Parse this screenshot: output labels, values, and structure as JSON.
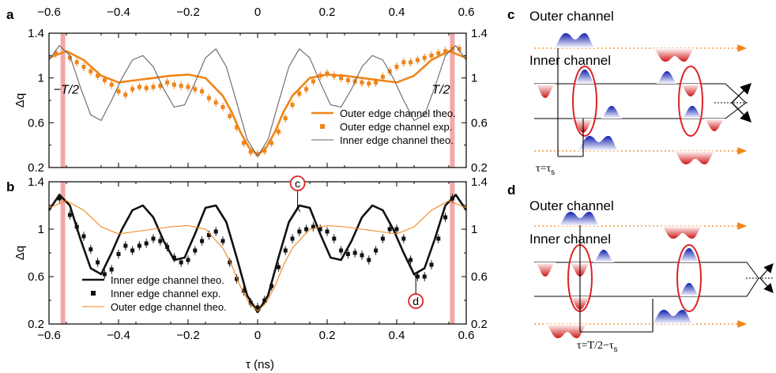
{
  "panel_labels": {
    "a": "a",
    "b": "b",
    "c": "c",
    "d": "d"
  },
  "xlabel": "τ (ns)",
  "colors": {
    "orange": "#f08519",
    "black": "#111111",
    "gray": "#666666",
    "red_band": "#f08a8a",
    "red": "#dd2222",
    "blue": "#2233cc"
  },
  "chart_data": [
    {
      "type": "line",
      "panel": "a",
      "xlim": [
        -0.6,
        0.6
      ],
      "ylim": [
        0.2,
        1.4
      ],
      "x_ticks": [
        "−0.6",
        "−0.4",
        "−0.2",
        "0",
        "0.2",
        "0.4",
        "0.6"
      ],
      "y_ticks": [
        "0.2",
        "0.6",
        "1",
        "1.4"
      ],
      "ylabel": "Δq",
      "band_labels": [
        "−T/2",
        "T/2"
      ],
      "bands_x": [
        -0.56,
        0.56
      ],
      "series": [
        {
          "name": "Outer edge channel theo.",
          "style": "thick-line",
          "color": "#f08519",
          "x": [
            -0.6,
            -0.55,
            -0.5,
            -0.45,
            -0.4,
            -0.35,
            -0.3,
            -0.25,
            -0.2,
            -0.15,
            -0.1,
            -0.075,
            -0.05,
            -0.025,
            0,
            0.025,
            0.05,
            0.075,
            0.1,
            0.15,
            0.2,
            0.25,
            0.3,
            0.35,
            0.4,
            0.45,
            0.5,
            0.55,
            0.6
          ],
          "y": [
            1.18,
            1.24,
            1.16,
            1.02,
            0.96,
            0.98,
            1.0,
            1.02,
            1.03,
            1.0,
            0.84,
            0.7,
            0.52,
            0.38,
            0.31,
            0.38,
            0.52,
            0.7,
            0.84,
            1.0,
            1.03,
            1.02,
            1.0,
            0.98,
            0.96,
            1.02,
            1.16,
            1.24,
            1.18
          ]
        },
        {
          "name": "Outer edge channel exp.",
          "style": "markers",
          "color": "#f08519",
          "x": [
            -0.58,
            -0.54,
            -0.52,
            -0.5,
            -0.48,
            -0.46,
            -0.44,
            -0.42,
            -0.4,
            -0.38,
            -0.36,
            -0.34,
            -0.32,
            -0.3,
            -0.28,
            -0.26,
            -0.24,
            -0.22,
            -0.2,
            -0.18,
            -0.16,
            -0.14,
            -0.12,
            -0.1,
            -0.08,
            -0.06,
            -0.04,
            -0.02,
            0,
            0.02,
            0.04,
            0.06,
            0.08,
            0.1,
            0.12,
            0.14,
            0.16,
            0.18,
            0.2,
            0.22,
            0.24,
            0.26,
            0.28,
            0.3,
            0.32,
            0.34,
            0.36,
            0.38,
            0.4,
            0.42,
            0.44,
            0.46,
            0.48,
            0.5,
            0.52,
            0.54,
            0.56,
            0.58
          ],
          "y": [
            1.22,
            1.18,
            1.14,
            1.1,
            1.06,
            1.02,
            0.98,
            0.94,
            0.88,
            0.85,
            0.9,
            0.92,
            0.91,
            0.92,
            0.93,
            0.96,
            0.94,
            0.93,
            0.92,
            0.9,
            0.88,
            0.82,
            0.78,
            0.74,
            0.66,
            0.56,
            0.42,
            0.34,
            0.32,
            0.35,
            0.42,
            0.52,
            0.64,
            0.76,
            0.86,
            0.9,
            0.97,
            1.02,
            1.04,
            1.02,
            1.0,
            0.98,
            0.97,
            0.96,
            0.95,
            0.96,
            1.01,
            1.06,
            1.1,
            1.14,
            1.14,
            1.16,
            1.18,
            1.2,
            1.22,
            1.24,
            1.26,
            1.26
          ],
          "err": 0.025
        },
        {
          "name": "Inner edge channel theo.",
          "style": "thin-line",
          "color": "#666666",
          "x": [
            -0.6,
            -0.57,
            -0.54,
            -0.51,
            -0.48,
            -0.45,
            -0.42,
            -0.39,
            -0.36,
            -0.33,
            -0.3,
            -0.27,
            -0.24,
            -0.21,
            -0.18,
            -0.15,
            -0.12,
            -0.09,
            -0.06,
            -0.03,
            0,
            0.03,
            0.06,
            0.09,
            0.12,
            0.15,
            0.18,
            0.21,
            0.24,
            0.27,
            0.3,
            0.33,
            0.36,
            0.39,
            0.42,
            0.45,
            0.48,
            0.51,
            0.54,
            0.57,
            0.6
          ],
          "y": [
            1.16,
            1.29,
            1.2,
            0.92,
            0.67,
            0.62,
            0.8,
            1.0,
            1.16,
            1.2,
            1.1,
            0.9,
            0.74,
            0.76,
            0.96,
            1.18,
            1.26,
            1.1,
            0.78,
            0.45,
            0.3,
            0.45,
            0.78,
            1.1,
            1.26,
            1.18,
            0.96,
            0.76,
            0.74,
            0.9,
            1.1,
            1.2,
            1.16,
            1.0,
            0.8,
            0.62,
            0.67,
            0.92,
            1.2,
            1.29,
            1.16
          ]
        }
      ]
    },
    {
      "type": "line",
      "panel": "b",
      "xlim": [
        -0.6,
        0.6
      ],
      "ylim": [
        0.2,
        1.4
      ],
      "x_ticks": [
        "−0.6",
        "−0.4",
        "−0.2",
        "0",
        "0.2",
        "0.4",
        "0.6"
      ],
      "y_ticks": [
        "0.2",
        "0.6",
        "1",
        "1.4"
      ],
      "ylabel": "Δq",
      "bands_x": [
        -0.56,
        0.56
      ],
      "annotations": [
        {
          "label": "c",
          "x": 0.115,
          "y": 1.2
        },
        {
          "label": "d",
          "x": 0.455,
          "y": 0.58
        }
      ],
      "series": [
        {
          "name": "Inner edge channel theo.",
          "style": "thick-line",
          "color": "#111111",
          "x": [
            -0.6,
            -0.57,
            -0.54,
            -0.51,
            -0.48,
            -0.45,
            -0.42,
            -0.39,
            -0.36,
            -0.33,
            -0.3,
            -0.27,
            -0.24,
            -0.21,
            -0.18,
            -0.15,
            -0.12,
            -0.09,
            -0.06,
            -0.03,
            0,
            0.03,
            0.06,
            0.09,
            0.12,
            0.15,
            0.18,
            0.21,
            0.24,
            0.27,
            0.3,
            0.33,
            0.36,
            0.39,
            0.42,
            0.45,
            0.48,
            0.51,
            0.54,
            0.57,
            0.6
          ],
          "y": [
            1.16,
            1.29,
            1.2,
            0.92,
            0.67,
            0.62,
            0.8,
            1.0,
            1.16,
            1.2,
            1.1,
            0.9,
            0.74,
            0.76,
            0.96,
            1.18,
            1.2,
            1.06,
            0.76,
            0.44,
            0.3,
            0.44,
            0.76,
            1.06,
            1.2,
            1.18,
            0.96,
            0.76,
            0.74,
            0.9,
            1.1,
            1.2,
            1.16,
            1.0,
            0.8,
            0.62,
            0.67,
            0.92,
            1.2,
            1.29,
            1.16
          ]
        },
        {
          "name": "Inner edge channel exp.",
          "style": "markers",
          "color": "#111111",
          "x": [
            -0.57,
            -0.54,
            -0.52,
            -0.5,
            -0.48,
            -0.46,
            -0.44,
            -0.42,
            -0.4,
            -0.38,
            -0.36,
            -0.34,
            -0.32,
            -0.3,
            -0.28,
            -0.26,
            -0.24,
            -0.22,
            -0.2,
            -0.18,
            -0.16,
            -0.14,
            -0.12,
            -0.1,
            -0.08,
            -0.06,
            -0.04,
            -0.02,
            0,
            0.02,
            0.04,
            0.06,
            0.08,
            0.1,
            0.12,
            0.14,
            0.16,
            0.18,
            0.2,
            0.22,
            0.24,
            0.26,
            0.28,
            0.3,
            0.32,
            0.34,
            0.36,
            0.38,
            0.4,
            0.42,
            0.44,
            0.46,
            0.48,
            0.5,
            0.52,
            0.54,
            0.56
          ],
          "y": [
            1.26,
            1.12,
            1.02,
            0.94,
            0.83,
            0.72,
            0.62,
            0.66,
            0.79,
            0.86,
            0.82,
            0.86,
            0.88,
            0.92,
            0.9,
            0.85,
            0.76,
            0.72,
            0.74,
            0.82,
            0.9,
            0.95,
            0.98,
            0.9,
            0.72,
            0.58,
            0.48,
            0.38,
            0.34,
            0.4,
            0.52,
            0.68,
            0.82,
            0.92,
            0.98,
            1.0,
            1.02,
            1.0,
            0.98,
            0.92,
            0.82,
            0.79,
            0.8,
            0.78,
            0.74,
            0.82,
            0.92,
            1.0,
            1.0,
            0.92,
            0.74,
            0.6,
            0.6,
            0.7,
            0.92,
            1.1,
            1.26
          ],
          "err": 0.025
        },
        {
          "name": "Outer edge channel theo.",
          "style": "thin-line",
          "color": "#f08519",
          "x": [
            -0.6,
            -0.55,
            -0.5,
            -0.45,
            -0.4,
            -0.35,
            -0.3,
            -0.25,
            -0.2,
            -0.15,
            -0.1,
            -0.075,
            -0.05,
            -0.025,
            0,
            0.025,
            0.05,
            0.075,
            0.1,
            0.15,
            0.2,
            0.25,
            0.3,
            0.35,
            0.4,
            0.45,
            0.5,
            0.55,
            0.6
          ],
          "y": [
            1.18,
            1.24,
            1.16,
            1.02,
            0.96,
            0.98,
            1.0,
            1.02,
            1.03,
            1.0,
            0.84,
            0.7,
            0.52,
            0.38,
            0.31,
            0.38,
            0.52,
            0.7,
            0.84,
            1.0,
            1.03,
            1.02,
            1.0,
            0.98,
            0.96,
            1.02,
            1.16,
            1.24,
            1.18
          ]
        }
      ]
    }
  ],
  "diagram_c": {
    "label_outer": "Outer channel",
    "label_inner": "Inner channel",
    "tau_label_main": "τ=τ",
    "tau_label_sub": "s"
  },
  "diagram_d": {
    "label_outer": "Outer channel",
    "label_inner": "Inner channel",
    "tau_label_main": "τ=T/2−τ",
    "tau_label_sub": "s"
  }
}
